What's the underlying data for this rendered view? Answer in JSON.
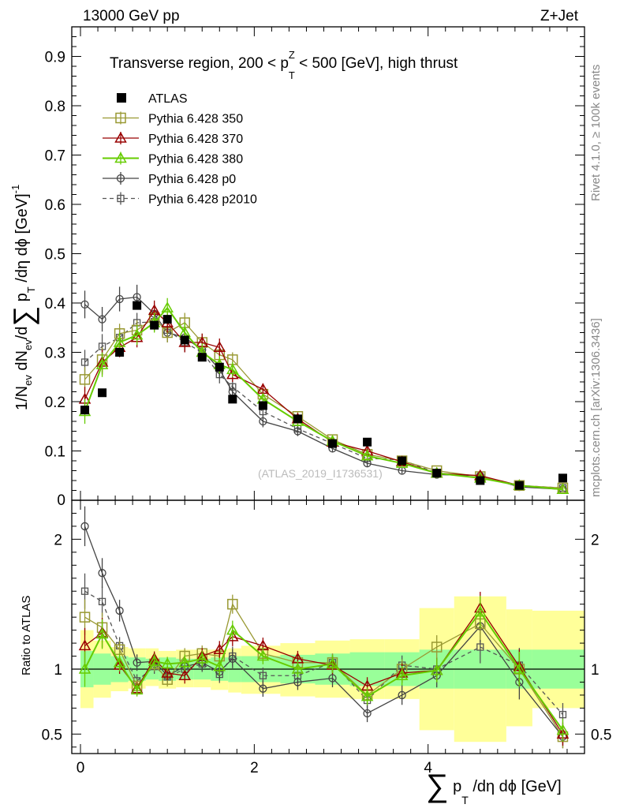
{
  "header": {
    "left": "13000 GeV pp",
    "right": "Z+Jet"
  },
  "side": {
    "rivet": "Rivet 4.1.0, ≥ 100k events",
    "mcplots": "mcplots.cern.ch [arXiv:1306.3436]"
  },
  "watermark": "(ATLAS_2019_I1736531)",
  "chart_data": [
    {
      "type": "scatter",
      "panel": "main",
      "title": "Transverse region, 200 < p_T^Z < 500 [GeV], high thrust",
      "title_parts": {
        "lead": "Transverse region, 200 < p",
        "sub": "T",
        "sup": "Z",
        "tail": " < 500 [GeV], high thrust"
      },
      "ylabel": "1/N_ev dN_ev/d∑ p_T/dη dϕ [GeV]^-1",
      "ylabel_parts": {
        "a": "1/N",
        "a_sub": "ev",
        "b": " dN",
        "b_sub": "ev",
        "c": "/d",
        "sum": "∑",
        "d": " p",
        "d_sub": "T",
        "e": " /dη dϕ  [GeV]",
        "sup": "-1"
      },
      "xlim": [
        -0.1,
        5.8
      ],
      "ylim": [
        0,
        0.96
      ],
      "yticks": [
        0.1,
        0.2,
        0.3,
        0.4,
        0.5,
        0.6,
        0.7,
        0.8,
        0.9
      ],
      "ytick_labels": [
        "0.1",
        "0.2",
        "0.3",
        "0.4",
        "0.5",
        "0.6",
        "0.7",
        "0.8",
        "0.9"
      ],
      "y_zero_label": "0",
      "x": [
        0.05,
        0.25,
        0.45,
        0.65,
        0.85,
        1.0,
        1.2,
        1.4,
        1.6,
        1.75,
        2.1,
        2.5,
        2.9,
        3.3,
        3.7,
        4.1,
        4.6,
        5.05,
        5.55
      ],
      "legend": [
        "ATLAS",
        "Pythia 6.428 350",
        "Pythia 6.428 370",
        "Pythia 6.428 380",
        "Pythia 6.428 p0",
        "Pythia 6.428 p2010"
      ],
      "series": [
        {
          "name": "ATLAS",
          "color": "#000000",
          "marker": "filled-square",
          "values": [
            0.183,
            0.218,
            0.3,
            0.395,
            0.355,
            0.367,
            0.325,
            0.29,
            0.27,
            0.205,
            0.192,
            0.165,
            0.115,
            0.118,
            0.08,
            0.055,
            0.04,
            0.03,
            0.045
          ]
        },
        {
          "name": "Pythia 6.428 350",
          "color": "#999933",
          "marker": "open-square",
          "values": [
            0.245,
            0.285,
            0.338,
            0.345,
            0.37,
            0.34,
            0.36,
            0.32,
            0.295,
            0.285,
            0.215,
            0.17,
            0.123,
            0.093,
            0.08,
            0.06,
            0.048,
            0.03,
            0.025
          ],
          "errors": [
            0.025,
            0.025,
            0.02,
            0.02,
            0.02,
            0.02,
            0.02,
            0.018,
            0.018,
            0.015,
            0.012,
            0.01,
            0.008,
            0.008,
            0.006,
            0.005,
            0.005,
            0.004,
            0.004
          ]
        },
        {
          "name": "Pythia 6.428 370",
          "color": "#990000",
          "marker": "open-triangle",
          "values": [
            0.205,
            0.28,
            0.31,
            0.33,
            0.385,
            0.36,
            0.32,
            0.32,
            0.31,
            0.255,
            0.225,
            0.165,
            0.118,
            0.1,
            0.078,
            0.055,
            0.05,
            0.03,
            0.022
          ],
          "errors": [
            0.025,
            0.025,
            0.02,
            0.02,
            0.02,
            0.02,
            0.02,
            0.018,
            0.018,
            0.015,
            0.012,
            0.01,
            0.008,
            0.008,
            0.006,
            0.005,
            0.005,
            0.004,
            0.004
          ]
        },
        {
          "name": "Pythia 6.428 380",
          "color": "#66cc00",
          "marker": "open-triangle",
          "values": [
            0.18,
            0.275,
            0.32,
            0.335,
            0.36,
            0.39,
            0.34,
            0.3,
            0.275,
            0.265,
            0.205,
            0.16,
            0.12,
            0.09,
            0.075,
            0.055,
            0.045,
            0.03,
            0.022
          ],
          "errors": [
            0.025,
            0.025,
            0.02,
            0.02,
            0.02,
            0.02,
            0.02,
            0.018,
            0.018,
            0.015,
            0.012,
            0.01,
            0.008,
            0.008,
            0.006,
            0.005,
            0.005,
            0.004,
            0.004
          ]
        },
        {
          "name": "Pythia 6.428 p0",
          "color": "#444444",
          "marker": "open-circle",
          "dash": false,
          "values": [
            0.397,
            0.367,
            0.408,
            0.412,
            0.378,
            0.34,
            0.33,
            0.305,
            0.265,
            0.22,
            0.16,
            0.14,
            0.105,
            0.075,
            0.06,
            0.052,
            0.05,
            0.027,
            0.022
          ],
          "errors": [
            0.028,
            0.025,
            0.025,
            0.025,
            0.02,
            0.02,
            0.02,
            0.018,
            0.018,
            0.015,
            0.012,
            0.01,
            0.008,
            0.008,
            0.006,
            0.005,
            0.005,
            0.004,
            0.004
          ]
        },
        {
          "name": "Pythia 6.428 p2010",
          "color": "#555555",
          "marker": "open-square-small",
          "dash": true,
          "values": [
            0.28,
            0.312,
            0.33,
            0.36,
            0.362,
            0.345,
            0.32,
            0.3,
            0.255,
            0.23,
            0.18,
            0.145,
            0.115,
            0.085,
            0.082,
            0.055,
            0.045,
            0.03,
            0.025
          ],
          "errors": [
            0.025,
            0.025,
            0.02,
            0.02,
            0.02,
            0.02,
            0.02,
            0.018,
            0.018,
            0.015,
            0.012,
            0.01,
            0.008,
            0.008,
            0.006,
            0.005,
            0.005,
            0.004,
            0.004
          ]
        }
      ]
    },
    {
      "type": "line",
      "panel": "ratio",
      "ylabel": "Ratio to ATLAS",
      "xlabel_parts": {
        "sum": "∑",
        "p": " p",
        "sub": "T",
        "tail": " /dη dϕ [GeV]"
      },
      "xlim": [
        -0.1,
        5.8
      ],
      "ylim": [
        0.35,
        2.3
      ],
      "yticks": [
        0.5,
        1,
        2
      ],
      "ytick_labels": [
        "0.5",
        "1",
        "2"
      ],
      "xticks": [
        0,
        2,
        4
      ],
      "xtick_labels": [
        "0",
        "2",
        "4"
      ],
      "bands": {
        "edges": [
          0.0,
          0.15,
          0.35,
          0.55,
          0.75,
          0.9,
          1.1,
          1.3,
          1.5,
          1.7,
          1.85,
          2.3,
          2.7,
          3.1,
          3.5,
          3.9,
          4.3,
          4.9,
          5.2,
          5.8
        ],
        "yellow_lo": [
          0.7,
          0.78,
          0.83,
          0.85,
          0.87,
          0.85,
          0.86,
          0.86,
          0.84,
          0.82,
          0.81,
          0.79,
          0.78,
          0.77,
          0.77,
          0.53,
          0.44,
          0.56,
          0.7
        ],
        "yellow_hi": [
          1.3,
          1.22,
          1.17,
          1.16,
          1.16,
          1.14,
          1.15,
          1.15,
          1.15,
          1.16,
          1.18,
          1.2,
          1.22,
          1.23,
          1.23,
          1.47,
          1.56,
          1.46,
          1.45
        ],
        "green_lo": [
          0.86,
          0.88,
          0.9,
          0.91,
          0.92,
          0.91,
          0.92,
          0.92,
          0.91,
          0.9,
          0.9,
          0.89,
          0.88,
          0.87,
          0.87,
          0.85,
          0.85,
          0.85,
          0.85
        ],
        "green_hi": [
          1.14,
          1.12,
          1.1,
          1.09,
          1.08,
          1.09,
          1.08,
          1.08,
          1.09,
          1.1,
          1.1,
          1.11,
          1.12,
          1.13,
          1.13,
          1.15,
          1.15,
          1.15,
          1.15
        ]
      },
      "series": [
        {
          "name": "Pythia 6.428 350",
          "values": [
            1.4,
            1.32,
            1.15,
            0.87,
            1.04,
            0.92,
            1.1,
            1.12,
            1.1,
            1.5,
            1.12,
            1.05,
            1.05,
            0.8,
            1.0,
            1.17,
            1.35,
            1.0,
            0.48
          ]
        },
        {
          "name": "Pythia 6.428 370",
          "values": [
            1.18,
            1.28,
            1.03,
            0.85,
            1.08,
            0.97,
            0.95,
            1.1,
            1.15,
            1.25,
            1.18,
            1.08,
            1.03,
            0.87,
            0.97,
            0.99,
            1.47,
            1.02,
            0.5
          ]
        },
        {
          "name": "Pythia 6.428 380",
          "values": [
            1.0,
            1.27,
            1.05,
            0.84,
            1.06,
            1.04,
            1.05,
            1.08,
            1.02,
            1.3,
            1.1,
            1.0,
            1.04,
            0.79,
            0.95,
            0.99,
            1.44,
            1.0,
            0.53
          ]
        },
        {
          "name": "Pythia 6.428 p0",
          "values": [
            2.1,
            1.74,
            1.45,
            1.05,
            1.06,
            0.95,
            1.02,
            1.05,
            0.98,
            1.08,
            0.85,
            0.9,
            0.93,
            0.66,
            0.8,
            0.95,
            1.33,
            0.9,
            0.48
          ]
        },
        {
          "name": "Pythia 6.428 p2010",
          "values": [
            1.6,
            1.52,
            1.18,
            0.91,
            1.02,
            0.94,
            1.0,
            1.04,
            0.96,
            1.1,
            0.95,
            0.95,
            1.05,
            0.76,
            1.03,
            1.0,
            1.17,
            1.03,
            0.65
          ]
        }
      ]
    }
  ]
}
